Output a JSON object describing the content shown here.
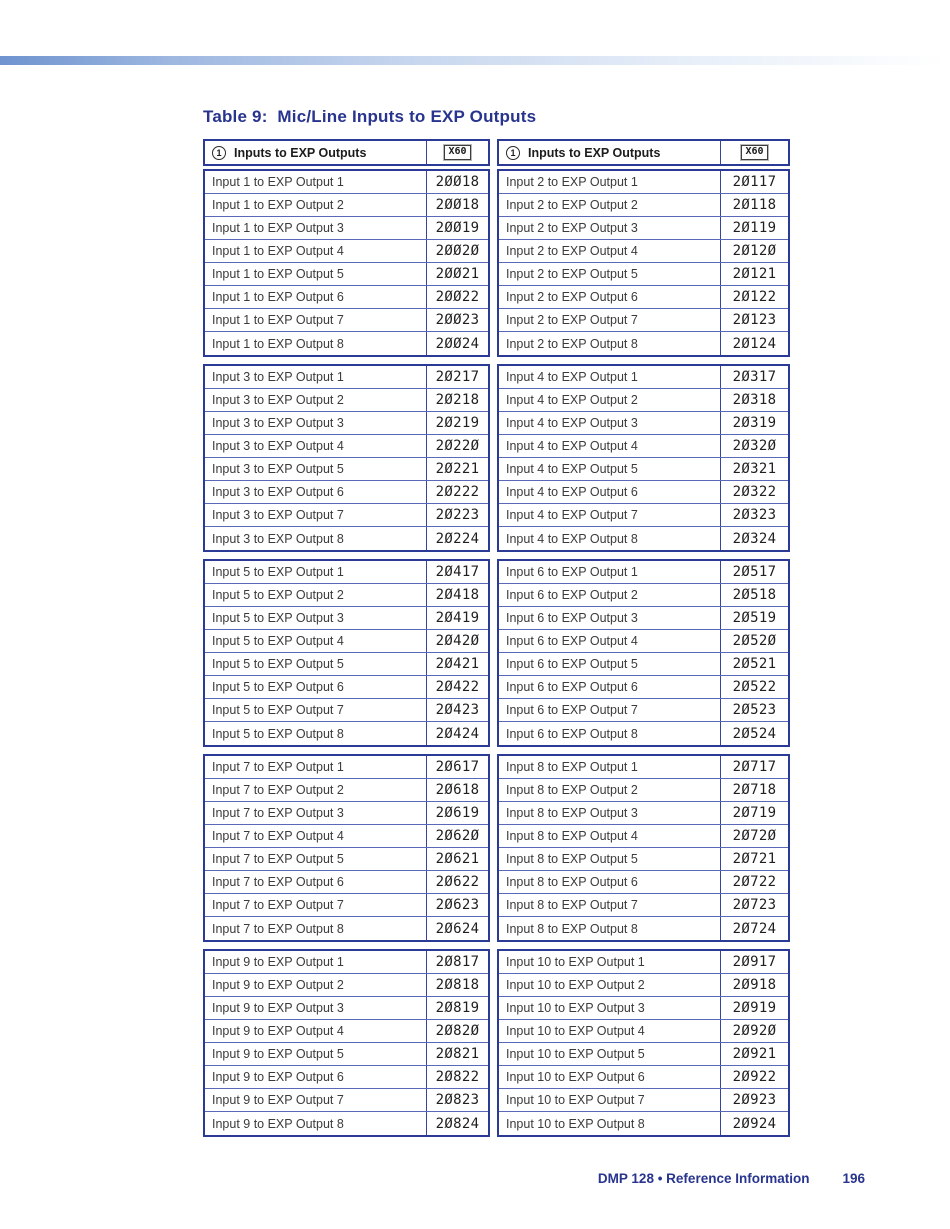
{
  "page": {
    "title": "Table 9:  Mic/Line Inputs to EXP Outputs",
    "footer": {
      "doc_label": "DMP 128 • Reference Information",
      "page_number": "196"
    }
  },
  "colors": {
    "accent_blue": "#28348e",
    "table_border": "#2b3a94",
    "row_line": "#5968b8",
    "gradient_left": "#6e93cf"
  },
  "icons": {
    "step_circle": "circled-1-icon"
  },
  "table": {
    "header": {
      "step_number": "1",
      "label": "Inputs to EXP Outputs",
      "variable": "X60"
    },
    "blocks": [
      {
        "left": [
          {
            "label": "Input 1 to EXP Output 1",
            "code": "2ØØ18"
          },
          {
            "label": "Input 1 to EXP Output 2",
            "code": "2ØØ18"
          },
          {
            "label": "Input 1 to EXP Output 3",
            "code": "2ØØ19"
          },
          {
            "label": "Input 1 to EXP Output 4",
            "code": "2ØØ2Ø"
          },
          {
            "label": "Input 1 to EXP Output 5",
            "code": "2ØØ21"
          },
          {
            "label": "Input 1 to EXP Output 6",
            "code": "2ØØ22"
          },
          {
            "label": "Input 1 to EXP Output 7",
            "code": "2ØØ23"
          },
          {
            "label": "Input 1 to EXP Output 8",
            "code": "2ØØ24"
          }
        ],
        "right": [
          {
            "label": "Input 2 to EXP Output 1",
            "code": "2Ø117"
          },
          {
            "label": "Input 2 to EXP Output 2",
            "code": "2Ø118"
          },
          {
            "label": "Input 2 to EXP Output 3",
            "code": "2Ø119"
          },
          {
            "label": "Input 2 to EXP Output 4",
            "code": "2Ø12Ø"
          },
          {
            "label": "Input 2 to EXP Output 5",
            "code": "2Ø121"
          },
          {
            "label": "Input 2 to EXP Output 6",
            "code": "2Ø122"
          },
          {
            "label": "Input 2 to EXP Output 7",
            "code": "2Ø123"
          },
          {
            "label": "Input 2 to EXP Output 8",
            "code": "2Ø124"
          }
        ]
      },
      {
        "left": [
          {
            "label": "Input 3 to EXP Output 1",
            "code": "2Ø217"
          },
          {
            "label": "Input 3 to EXP Output 2",
            "code": "2Ø218"
          },
          {
            "label": "Input 3 to EXP Output 3",
            "code": "2Ø219"
          },
          {
            "label": "Input 3 to EXP Output 4",
            "code": "2Ø22Ø"
          },
          {
            "label": "Input 3 to EXP Output 5",
            "code": "2Ø221"
          },
          {
            "label": "Input 3 to EXP Output 6",
            "code": "2Ø222"
          },
          {
            "label": "Input 3 to EXP Output 7",
            "code": "2Ø223"
          },
          {
            "label": "Input 3 to EXP Output 8",
            "code": "2Ø224"
          }
        ],
        "right": [
          {
            "label": "Input 4 to EXP Output 1",
            "code": "2Ø317"
          },
          {
            "label": "Input 4 to EXP Output 2",
            "code": "2Ø318"
          },
          {
            "label": "Input 4 to EXP Output 3",
            "code": "2Ø319"
          },
          {
            "label": "Input 4 to EXP Output 4",
            "code": "2Ø32Ø"
          },
          {
            "label": "Input 4 to EXP Output 5",
            "code": "2Ø321"
          },
          {
            "label": "Input 4 to EXP Output 6",
            "code": "2Ø322"
          },
          {
            "label": "Input 4 to EXP Output 7",
            "code": "2Ø323"
          },
          {
            "label": "Input 4 to EXP Output 8",
            "code": "2Ø324"
          }
        ]
      },
      {
        "left": [
          {
            "label": "Input 5 to EXP Output 1",
            "code": "2Ø417"
          },
          {
            "label": "Input 5 to EXP Output 2",
            "code": "2Ø418"
          },
          {
            "label": "Input 5 to EXP Output 3",
            "code": "2Ø419"
          },
          {
            "label": "Input 5 to EXP Output 4",
            "code": "2Ø42Ø"
          },
          {
            "label": "Input 5 to EXP Output 5",
            "code": "2Ø421"
          },
          {
            "label": "Input 5 to EXP Output 6",
            "code": "2Ø422"
          },
          {
            "label": "Input 5 to EXP Output 7",
            "code": "2Ø423"
          },
          {
            "label": "Input 5 to EXP Output 8",
            "code": "2Ø424"
          }
        ],
        "right": [
          {
            "label": "Input 6 to EXP Output 1",
            "code": "2Ø517"
          },
          {
            "label": "Input 6 to EXP Output 2",
            "code": "2Ø518"
          },
          {
            "label": "Input 6 to EXP Output 3",
            "code": "2Ø519"
          },
          {
            "label": "Input 6 to EXP Output 4",
            "code": "2Ø52Ø"
          },
          {
            "label": "Input 6 to EXP Output 5",
            "code": "2Ø521"
          },
          {
            "label": "Input 6 to EXP Output 6",
            "code": "2Ø522"
          },
          {
            "label": "Input 6 to EXP Output 7",
            "code": "2Ø523"
          },
          {
            "label": "Input 6 to EXP Output 8",
            "code": "2Ø524"
          }
        ]
      },
      {
        "left": [
          {
            "label": "Input 7 to EXP Output 1",
            "code": "2Ø617"
          },
          {
            "label": "Input 7 to EXP Output 2",
            "code": "2Ø618"
          },
          {
            "label": "Input 7 to EXP Output 3",
            "code": "2Ø619"
          },
          {
            "label": "Input 7 to EXP Output 4",
            "code": "2Ø62Ø"
          },
          {
            "label": "Input 7 to EXP Output 5",
            "code": "2Ø621"
          },
          {
            "label": "Input 7 to EXP Output 6",
            "code": "2Ø622"
          },
          {
            "label": "Input 7 to EXP Output 7",
            "code": "2Ø623"
          },
          {
            "label": "Input 7 to EXP Output 8",
            "code": "2Ø624"
          }
        ],
        "right": [
          {
            "label": "Input 8 to EXP Output 1",
            "code": "2Ø717"
          },
          {
            "label": "Input 8 to EXP Output 2",
            "code": "2Ø718"
          },
          {
            "label": "Input 8 to EXP Output 3",
            "code": "2Ø719"
          },
          {
            "label": "Input 8 to EXP Output 4",
            "code": "2Ø72Ø"
          },
          {
            "label": "Input 8 to EXP Output 5",
            "code": "2Ø721"
          },
          {
            "label": "Input 8 to EXP Output 6",
            "code": "2Ø722"
          },
          {
            "label": "Input 8 to EXP Output 7",
            "code": "2Ø723"
          },
          {
            "label": "Input 8 to EXP Output 8",
            "code": "2Ø724"
          }
        ]
      },
      {
        "left": [
          {
            "label": "Input 9 to EXP Output 1",
            "code": "2Ø817"
          },
          {
            "label": "Input 9 to EXP Output 2",
            "code": "2Ø818"
          },
          {
            "label": "Input 9 to EXP Output 3",
            "code": "2Ø819"
          },
          {
            "label": "Input 9 to EXP Output 4",
            "code": "2Ø82Ø"
          },
          {
            "label": "Input 9 to EXP Output 5",
            "code": "2Ø821"
          },
          {
            "label": "Input 9 to EXP Output 6",
            "code": "2Ø822"
          },
          {
            "label": "Input 9 to EXP Output 7",
            "code": "2Ø823"
          },
          {
            "label": "Input 9 to EXP Output 8",
            "code": "2Ø824"
          }
        ],
        "right": [
          {
            "label": "Input 10 to EXP Output 1",
            "code": "2Ø917"
          },
          {
            "label": "Input 10 to EXP Output 2",
            "code": "2Ø918"
          },
          {
            "label": "Input 10 to EXP Output 3",
            "code": "2Ø919"
          },
          {
            "label": "Input 10 to EXP Output 4",
            "code": "2Ø92Ø"
          },
          {
            "label": "Input 10 to EXP Output 5",
            "code": "2Ø921"
          },
          {
            "label": "Input 10 to EXP Output 6",
            "code": "2Ø922"
          },
          {
            "label": "Input 10 to EXP Output 7",
            "code": "2Ø923"
          },
          {
            "label": "Input 10 to EXP Output 8",
            "code": "2Ø924"
          }
        ]
      }
    ]
  }
}
